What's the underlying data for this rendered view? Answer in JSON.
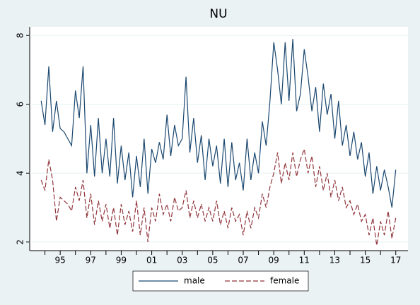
{
  "chart_data": {
    "type": "line",
    "title": "NU",
    "x": [
      1993.75,
      1994,
      1994.25,
      1994.5,
      1994.75,
      1995,
      1995.25,
      1995.5,
      1995.75,
      1996,
      1996.25,
      1996.5,
      1996.75,
      1997,
      1997.25,
      1997.5,
      1997.75,
      1998,
      1998.25,
      1998.5,
      1998.75,
      1999,
      1999.25,
      1999.5,
      1999.75,
      2000,
      2000.25,
      2000.5,
      2000.75,
      2001,
      2001.25,
      2001.5,
      2001.75,
      2002,
      2002.25,
      2002.5,
      2002.75,
      2003,
      2003.25,
      2003.5,
      2003.75,
      2004,
      2004.25,
      2004.5,
      2004.75,
      2005,
      2005.25,
      2005.5,
      2005.75,
      2006,
      2006.25,
      2006.5,
      2006.75,
      2007,
      2007.25,
      2007.5,
      2007.75,
      2008,
      2008.25,
      2008.5,
      2008.75,
      2009,
      2009.25,
      2009.5,
      2009.75,
      2010,
      2010.25,
      2010.5,
      2010.75,
      2011,
      2011.25,
      2011.5,
      2011.75,
      2012,
      2012.25,
      2012.5,
      2012.75,
      2013,
      2013.25,
      2013.5,
      2013.75,
      2014,
      2014.25,
      2014.5,
      2014.75,
      2015,
      2015.25,
      2015.5,
      2015.75,
      2016,
      2016.25,
      2016.5,
      2016.75,
      2017
    ],
    "series": [
      {
        "name": "male",
        "color": "#1a476f",
        "dashed": false,
        "values": [
          6.1,
          5.4,
          7.1,
          5.2,
          6.1,
          5.3,
          5.2,
          5.0,
          4.8,
          6.4,
          5.6,
          7.1,
          4.0,
          5.4,
          3.9,
          5.6,
          4.0,
          5.0,
          3.9,
          5.6,
          3.7,
          4.8,
          3.8,
          4.6,
          3.3,
          4.5,
          3.6,
          5.0,
          3.4,
          4.7,
          4.3,
          4.9,
          4.4,
          5.7,
          4.5,
          5.4,
          4.8,
          5.0,
          6.8,
          4.6,
          5.6,
          4.3,
          5.1,
          3.8,
          5.0,
          4.2,
          4.8,
          3.7,
          5.0,
          3.6,
          4.9,
          3.8,
          4.3,
          3.5,
          5.0,
          3.8,
          4.6,
          4.0,
          5.5,
          4.8,
          6.1,
          7.8,
          7.0,
          6.0,
          7.8,
          6.1,
          7.9,
          5.8,
          6.3,
          7.6,
          6.8,
          5.8,
          6.5,
          5.2,
          6.6,
          5.7,
          6.3,
          5.0,
          6.1,
          4.8,
          5.4,
          4.5,
          5.2,
          4.4,
          4.9,
          3.9,
          4.6,
          3.4,
          4.2,
          3.5,
          4.1,
          3.6,
          3.0,
          4.1
        ]
      },
      {
        "name": "female",
        "color": "#90353b",
        "dashed": true,
        "values": [
          3.8,
          3.5,
          4.4,
          3.8,
          2.6,
          3.3,
          3.2,
          3.1,
          2.9,
          3.6,
          3.2,
          3.8,
          2.7,
          3.4,
          2.5,
          3.2,
          2.6,
          3.1,
          2.4,
          3.0,
          2.2,
          3.1,
          2.5,
          2.9,
          2.3,
          3.2,
          2.2,
          3.0,
          2.0,
          3.0,
          2.6,
          3.4,
          2.8,
          3.1,
          2.6,
          3.3,
          2.9,
          3.0,
          3.5,
          2.7,
          3.2,
          2.7,
          3.1,
          2.6,
          3.0,
          2.6,
          3.2,
          2.5,
          2.9,
          2.4,
          3.0,
          2.6,
          2.8,
          2.2,
          2.9,
          2.4,
          3.0,
          2.7,
          3.4,
          3.0,
          3.6,
          4.0,
          4.6,
          3.7,
          4.3,
          3.8,
          4.6,
          3.9,
          4.4,
          4.7,
          4.0,
          4.5,
          3.6,
          4.2,
          3.5,
          4.0,
          3.3,
          3.8,
          3.2,
          3.6,
          3.0,
          3.2,
          2.8,
          3.1,
          2.6,
          2.8,
          2.2,
          2.7,
          1.9,
          2.6,
          2.2,
          2.9,
          2.1,
          2.7
        ]
      }
    ],
    "xlim": [
      1993,
      2017.8
    ],
    "xticks": [
      {
        "value": 1995,
        "label": "95"
      },
      {
        "value": 1997,
        "label": "97"
      },
      {
        "value": 1999,
        "label": "99"
      },
      {
        "value": 2001,
        "label": "01"
      },
      {
        "value": 2003,
        "label": "03"
      },
      {
        "value": 2005,
        "label": "05"
      },
      {
        "value": 2007,
        "label": "07"
      },
      {
        "value": 2009,
        "label": "09"
      },
      {
        "value": 2011,
        "label": "11"
      },
      {
        "value": 2013,
        "label": "13"
      },
      {
        "value": 2015,
        "label": "15"
      },
      {
        "value": 2017,
        "label": "17"
      }
    ],
    "xticks_minor": [
      1994,
      1996,
      1998,
      2000,
      2002,
      2004,
      2006,
      2008,
      2010,
      2012,
      2014,
      2016
    ],
    "ylim": [
      1.75,
      8.25
    ],
    "yticks": [
      2,
      4,
      6,
      8
    ],
    "grid": true,
    "legend": "bottom"
  }
}
